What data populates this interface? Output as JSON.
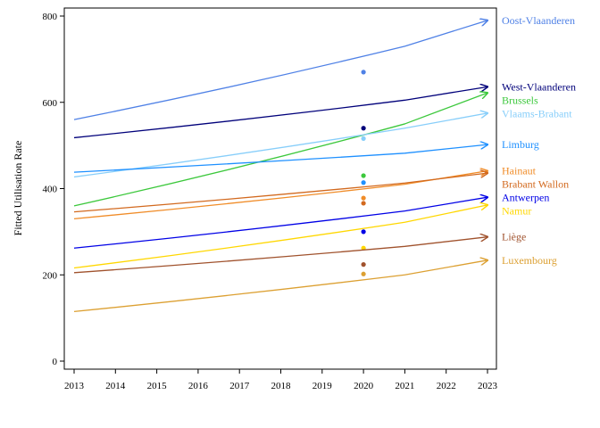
{
  "chart_data": {
    "type": "line",
    "ylabel": "Fitted Utilisation Rate",
    "xlabel": "",
    "x": [
      2013,
      2014,
      2015,
      2016,
      2017,
      2018,
      2019,
      2020,
      2021,
      2022,
      2023
    ],
    "xlim": [
      2013,
      2023
    ],
    "ylim": [
      0,
      800
    ],
    "yticks": [
      0,
      200,
      400,
      600,
      800
    ],
    "grid": false,
    "legend": "right",
    "series": [
      {
        "name": "Oost-Vlaanderen",
        "color": "#4f81e6",
        "line_x": [
          2013,
          2021,
          2023
        ],
        "line_y": [
          560,
          730,
          790
        ],
        "point": [
          2020,
          670
        ]
      },
      {
        "name": "West-Vlaanderen",
        "color": "#00007a",
        "line_x": [
          2013,
          2021,
          2023
        ],
        "line_y": [
          518,
          605,
          636
        ],
        "point": [
          2020,
          540
        ]
      },
      {
        "name": "Brussels",
        "color": "#3cc83c",
        "line_x": [
          2013,
          2021,
          2023
        ],
        "line_y": [
          360,
          550,
          622
        ],
        "point": [
          2020,
          430
        ]
      },
      {
        "name": "Vlaams-Brabant",
        "color": "#87cefa",
        "line_x": [
          2013,
          2021,
          2023
        ],
        "line_y": [
          427,
          540,
          575
        ],
        "point": [
          2020,
          516
        ]
      },
      {
        "name": "Limburg",
        "color": "#1e90ff",
        "line_x": [
          2013,
          2021,
          2023
        ],
        "line_y": [
          438,
          482,
          502
        ],
        "point": [
          2020,
          414
        ]
      },
      {
        "name": "Hainaut",
        "color": "#f08c28",
        "line_x": [
          2013,
          2021,
          2023
        ],
        "line_y": [
          330,
          410,
          441
        ],
        "point": [
          2020,
          378
        ]
      },
      {
        "name": "Brabant Wallon",
        "color": "#d2691e",
        "line_x": [
          2013,
          2021,
          2023
        ],
        "line_y": [
          346,
          413,
          436
        ],
        "point": [
          2020,
          366
        ]
      },
      {
        "name": "Antwerpen",
        "color": "#0000e6",
        "line_x": [
          2013,
          2021,
          2023
        ],
        "line_y": [
          262,
          348,
          380
        ],
        "point": [
          2020,
          300
        ]
      },
      {
        "name": "Namur",
        "color": "#ffd700",
        "line_x": [
          2013,
          2021,
          2023
        ],
        "line_y": [
          216,
          322,
          362
        ],
        "point": [
          2020,
          262
        ]
      },
      {
        "name": "Liège",
        "color": "#a0522d",
        "line_x": [
          2013,
          2021,
          2023
        ],
        "line_y": [
          205,
          266,
          288
        ],
        "point": [
          2020,
          224
        ]
      },
      {
        "name": "Luxembourg",
        "color": "#dca032",
        "line_x": [
          2013,
          2021,
          2023
        ],
        "line_y": [
          115,
          200,
          234
        ],
        "point": [
          2020,
          202
        ]
      }
    ]
  }
}
